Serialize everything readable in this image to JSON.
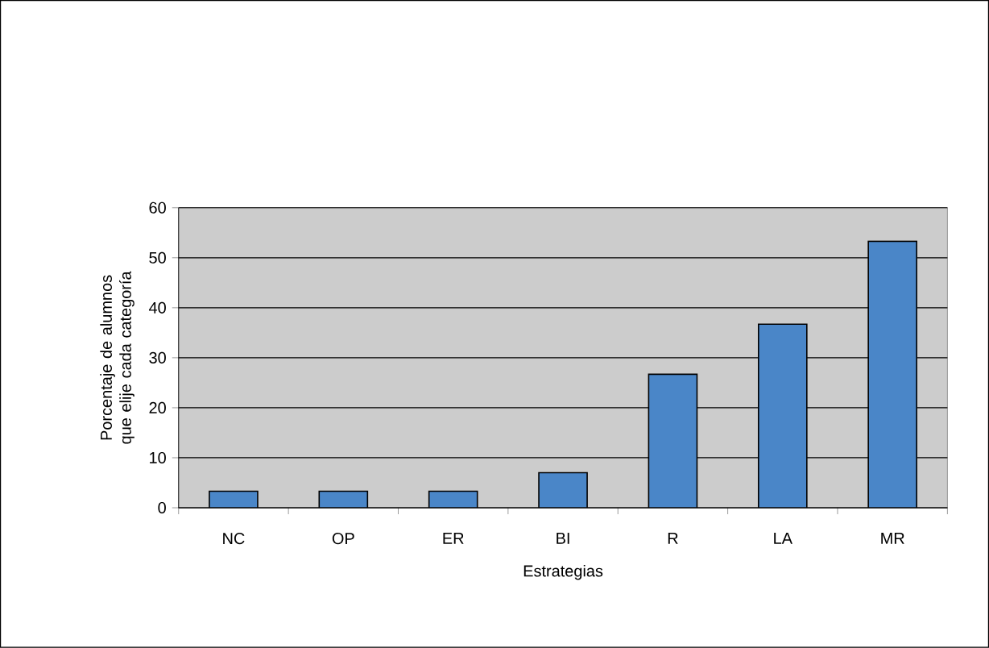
{
  "chart_data": {
    "type": "bar",
    "categories": [
      "NC",
      "OP",
      "ER",
      "BI",
      "R",
      "LA",
      "MR"
    ],
    "values": [
      3.3,
      3.3,
      3.3,
      7,
      26.7,
      36.7,
      53.3
    ],
    "color": "#4a86c8",
    "xlabel": "Estrategias",
    "ylabel": "Porcentaje de alumnos que elije cada categoría",
    "ylim": [
      0,
      60
    ],
    "yticks": [
      0,
      10,
      20,
      30,
      40,
      50,
      60
    ],
    "grid": "y"
  }
}
